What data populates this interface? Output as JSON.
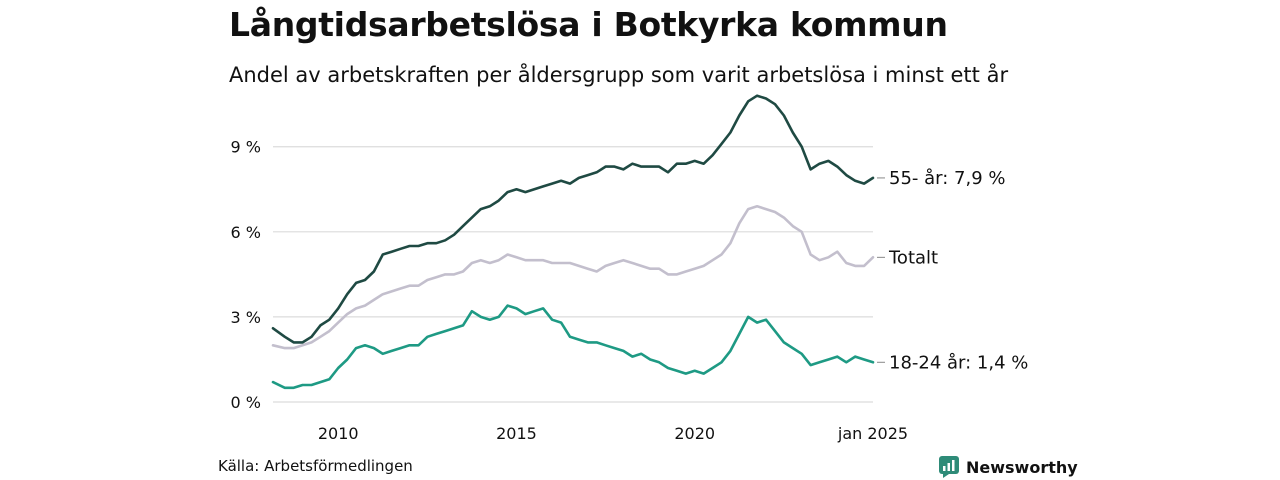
{
  "title": "Långtidsarbetslösa i Botkyrka kommun",
  "subtitle": "Andel av arbetskraften per åldersgrupp som varit arbetslösa i minst ett år",
  "source": "Källa: Arbetsförmedlingen",
  "brand": "Newsworthy",
  "colors": {
    "series_55": "#1f4a43",
    "series_total": "#c3bfcd",
    "series_18_24": "#1e9a84",
    "grid": "#dcdcdc",
    "brand": "#2e8b78"
  },
  "chart_data": {
    "type": "line",
    "title": "Långtidsarbetslösa i Botkyrka kommun",
    "subtitle": "Andel av arbetskraften per åldersgrupp som varit arbetslösa i minst ett år",
    "ylim": [
      0,
      11
    ],
    "yticks": [
      0,
      3,
      6,
      9
    ],
    "ytick_labels": [
      "0 %",
      "3 %",
      "6 %",
      "9 %"
    ],
    "xlim": [
      2008.17,
      2025.0
    ],
    "xticks": [
      2010,
      2015,
      2020,
      2025
    ],
    "xtick_labels": [
      "2010",
      "2015",
      "2020",
      "jan 2025"
    ],
    "grid": true,
    "series": [
      {
        "key": "series_55",
        "label": "55- år: 7,9 %",
        "end_value": 7.9,
        "points": [
          [
            2008.17,
            2.6
          ],
          [
            2008.5,
            2.3
          ],
          [
            2008.75,
            2.1
          ],
          [
            2009.0,
            2.1
          ],
          [
            2009.25,
            2.3
          ],
          [
            2009.5,
            2.7
          ],
          [
            2009.75,
            2.9
          ],
          [
            2010.0,
            3.3
          ],
          [
            2010.25,
            3.8
          ],
          [
            2010.5,
            4.2
          ],
          [
            2010.75,
            4.3
          ],
          [
            2011.0,
            4.6
          ],
          [
            2011.25,
            5.2
          ],
          [
            2011.5,
            5.3
          ],
          [
            2011.75,
            5.4
          ],
          [
            2012.0,
            5.5
          ],
          [
            2012.25,
            5.5
          ],
          [
            2012.5,
            5.6
          ],
          [
            2012.75,
            5.6
          ],
          [
            2013.0,
            5.7
          ],
          [
            2013.25,
            5.9
          ],
          [
            2013.5,
            6.2
          ],
          [
            2013.75,
            6.5
          ],
          [
            2014.0,
            6.8
          ],
          [
            2014.25,
            6.9
          ],
          [
            2014.5,
            7.1
          ],
          [
            2014.75,
            7.4
          ],
          [
            2015.0,
            7.5
          ],
          [
            2015.25,
            7.4
          ],
          [
            2015.5,
            7.5
          ],
          [
            2015.75,
            7.6
          ],
          [
            2016.0,
            7.7
          ],
          [
            2016.25,
            7.8
          ],
          [
            2016.5,
            7.7
          ],
          [
            2016.75,
            7.9
          ],
          [
            2017.0,
            8.0
          ],
          [
            2017.25,
            8.1
          ],
          [
            2017.5,
            8.3
          ],
          [
            2017.75,
            8.3
          ],
          [
            2018.0,
            8.2
          ],
          [
            2018.25,
            8.4
          ],
          [
            2018.5,
            8.3
          ],
          [
            2018.75,
            8.3
          ],
          [
            2019.0,
            8.3
          ],
          [
            2019.25,
            8.1
          ],
          [
            2019.5,
            8.4
          ],
          [
            2019.75,
            8.4
          ],
          [
            2020.0,
            8.5
          ],
          [
            2020.25,
            8.4
          ],
          [
            2020.5,
            8.7
          ],
          [
            2020.75,
            9.1
          ],
          [
            2021.0,
            9.5
          ],
          [
            2021.25,
            10.1
          ],
          [
            2021.5,
            10.6
          ],
          [
            2021.75,
            10.8
          ],
          [
            2022.0,
            10.7
          ],
          [
            2022.25,
            10.5
          ],
          [
            2022.5,
            10.1
          ],
          [
            2022.75,
            9.5
          ],
          [
            2023.0,
            9.0
          ],
          [
            2023.25,
            8.2
          ],
          [
            2023.5,
            8.4
          ],
          [
            2023.75,
            8.5
          ],
          [
            2024.0,
            8.3
          ],
          [
            2024.25,
            8.0
          ],
          [
            2024.5,
            7.8
          ],
          [
            2024.75,
            7.7
          ],
          [
            2025.0,
            7.9
          ]
        ]
      },
      {
        "key": "series_total",
        "label": "Totalt",
        "end_value": 5.1,
        "points": [
          [
            2008.17,
            2.0
          ],
          [
            2008.5,
            1.9
          ],
          [
            2008.75,
            1.9
          ],
          [
            2009.0,
            2.0
          ],
          [
            2009.25,
            2.1
          ],
          [
            2009.5,
            2.3
          ],
          [
            2009.75,
            2.5
          ],
          [
            2010.0,
            2.8
          ],
          [
            2010.25,
            3.1
          ],
          [
            2010.5,
            3.3
          ],
          [
            2010.75,
            3.4
          ],
          [
            2011.0,
            3.6
          ],
          [
            2011.25,
            3.8
          ],
          [
            2011.5,
            3.9
          ],
          [
            2011.75,
            4.0
          ],
          [
            2012.0,
            4.1
          ],
          [
            2012.25,
            4.1
          ],
          [
            2012.5,
            4.3
          ],
          [
            2012.75,
            4.4
          ],
          [
            2013.0,
            4.5
          ],
          [
            2013.25,
            4.5
          ],
          [
            2013.5,
            4.6
          ],
          [
            2013.75,
            4.9
          ],
          [
            2014.0,
            5.0
          ],
          [
            2014.25,
            4.9
          ],
          [
            2014.5,
            5.0
          ],
          [
            2014.75,
            5.2
          ],
          [
            2015.0,
            5.1
          ],
          [
            2015.25,
            5.0
          ],
          [
            2015.5,
            5.0
          ],
          [
            2015.75,
            5.0
          ],
          [
            2016.0,
            4.9
          ],
          [
            2016.25,
            4.9
          ],
          [
            2016.5,
            4.9
          ],
          [
            2016.75,
            4.8
          ],
          [
            2017.0,
            4.7
          ],
          [
            2017.25,
            4.6
          ],
          [
            2017.5,
            4.8
          ],
          [
            2017.75,
            4.9
          ],
          [
            2018.0,
            5.0
          ],
          [
            2018.25,
            4.9
          ],
          [
            2018.5,
            4.8
          ],
          [
            2018.75,
            4.7
          ],
          [
            2019.0,
            4.7
          ],
          [
            2019.25,
            4.5
          ],
          [
            2019.5,
            4.5
          ],
          [
            2019.75,
            4.6
          ],
          [
            2020.0,
            4.7
          ],
          [
            2020.25,
            4.8
          ],
          [
            2020.5,
            5.0
          ],
          [
            2020.75,
            5.2
          ],
          [
            2021.0,
            5.6
          ],
          [
            2021.25,
            6.3
          ],
          [
            2021.5,
            6.8
          ],
          [
            2021.75,
            6.9
          ],
          [
            2022.0,
            6.8
          ],
          [
            2022.25,
            6.7
          ],
          [
            2022.5,
            6.5
          ],
          [
            2022.75,
            6.2
          ],
          [
            2023.0,
            6.0
          ],
          [
            2023.25,
            5.2
          ],
          [
            2023.5,
            5.0
          ],
          [
            2023.75,
            5.1
          ],
          [
            2024.0,
            5.3
          ],
          [
            2024.25,
            4.9
          ],
          [
            2024.5,
            4.8
          ],
          [
            2024.75,
            4.8
          ],
          [
            2025.0,
            5.1
          ]
        ]
      },
      {
        "key": "series_18_24",
        "label": "18-24 år: 1,4 %",
        "end_value": 1.4,
        "points": [
          [
            2008.17,
            0.7
          ],
          [
            2008.5,
            0.5
          ],
          [
            2008.75,
            0.5
          ],
          [
            2009.0,
            0.6
          ],
          [
            2009.25,
            0.6
          ],
          [
            2009.5,
            0.7
          ],
          [
            2009.75,
            0.8
          ],
          [
            2010.0,
            1.2
          ],
          [
            2010.25,
            1.5
          ],
          [
            2010.5,
            1.9
          ],
          [
            2010.75,
            2.0
          ],
          [
            2011.0,
            1.9
          ],
          [
            2011.25,
            1.7
          ],
          [
            2011.5,
            1.8
          ],
          [
            2011.75,
            1.9
          ],
          [
            2012.0,
            2.0
          ],
          [
            2012.25,
            2.0
          ],
          [
            2012.5,
            2.3
          ],
          [
            2012.75,
            2.4
          ],
          [
            2013.0,
            2.5
          ],
          [
            2013.25,
            2.6
          ],
          [
            2013.5,
            2.7
          ],
          [
            2013.75,
            3.2
          ],
          [
            2014.0,
            3.0
          ],
          [
            2014.25,
            2.9
          ],
          [
            2014.5,
            3.0
          ],
          [
            2014.75,
            3.4
          ],
          [
            2015.0,
            3.3
          ],
          [
            2015.25,
            3.1
          ],
          [
            2015.5,
            3.2
          ],
          [
            2015.75,
            3.3
          ],
          [
            2016.0,
            2.9
          ],
          [
            2016.25,
            2.8
          ],
          [
            2016.5,
            2.3
          ],
          [
            2016.75,
            2.2
          ],
          [
            2017.0,
            2.1
          ],
          [
            2017.25,
            2.1
          ],
          [
            2017.5,
            2.0
          ],
          [
            2017.75,
            1.9
          ],
          [
            2018.0,
            1.8
          ],
          [
            2018.25,
            1.6
          ],
          [
            2018.5,
            1.7
          ],
          [
            2018.75,
            1.5
          ],
          [
            2019.0,
            1.4
          ],
          [
            2019.25,
            1.2
          ],
          [
            2019.5,
            1.1
          ],
          [
            2019.75,
            1.0
          ],
          [
            2020.0,
            1.1
          ],
          [
            2020.25,
            1.0
          ],
          [
            2020.5,
            1.2
          ],
          [
            2020.75,
            1.4
          ],
          [
            2021.0,
            1.8
          ],
          [
            2021.25,
            2.4
          ],
          [
            2021.5,
            3.0
          ],
          [
            2021.75,
            2.8
          ],
          [
            2022.0,
            2.9
          ],
          [
            2022.25,
            2.5
          ],
          [
            2022.5,
            2.1
          ],
          [
            2022.75,
            1.9
          ],
          [
            2023.0,
            1.7
          ],
          [
            2023.25,
            1.3
          ],
          [
            2023.5,
            1.4
          ],
          [
            2023.75,
            1.5
          ],
          [
            2024.0,
            1.6
          ],
          [
            2024.25,
            1.4
          ],
          [
            2024.5,
            1.6
          ],
          [
            2024.75,
            1.5
          ],
          [
            2025.0,
            1.4
          ]
        ]
      }
    ],
    "end_labels": [
      {
        "series": "series_55",
        "text": "55- år: 7,9 %",
        "anchor_value": 7.9
      },
      {
        "series": "series_total",
        "text": "Totalt",
        "anchor_value": 5.1
      },
      {
        "series": "series_18_24",
        "text": "18-24 år: 1,4 %",
        "anchor_value": 1.4
      }
    ]
  }
}
